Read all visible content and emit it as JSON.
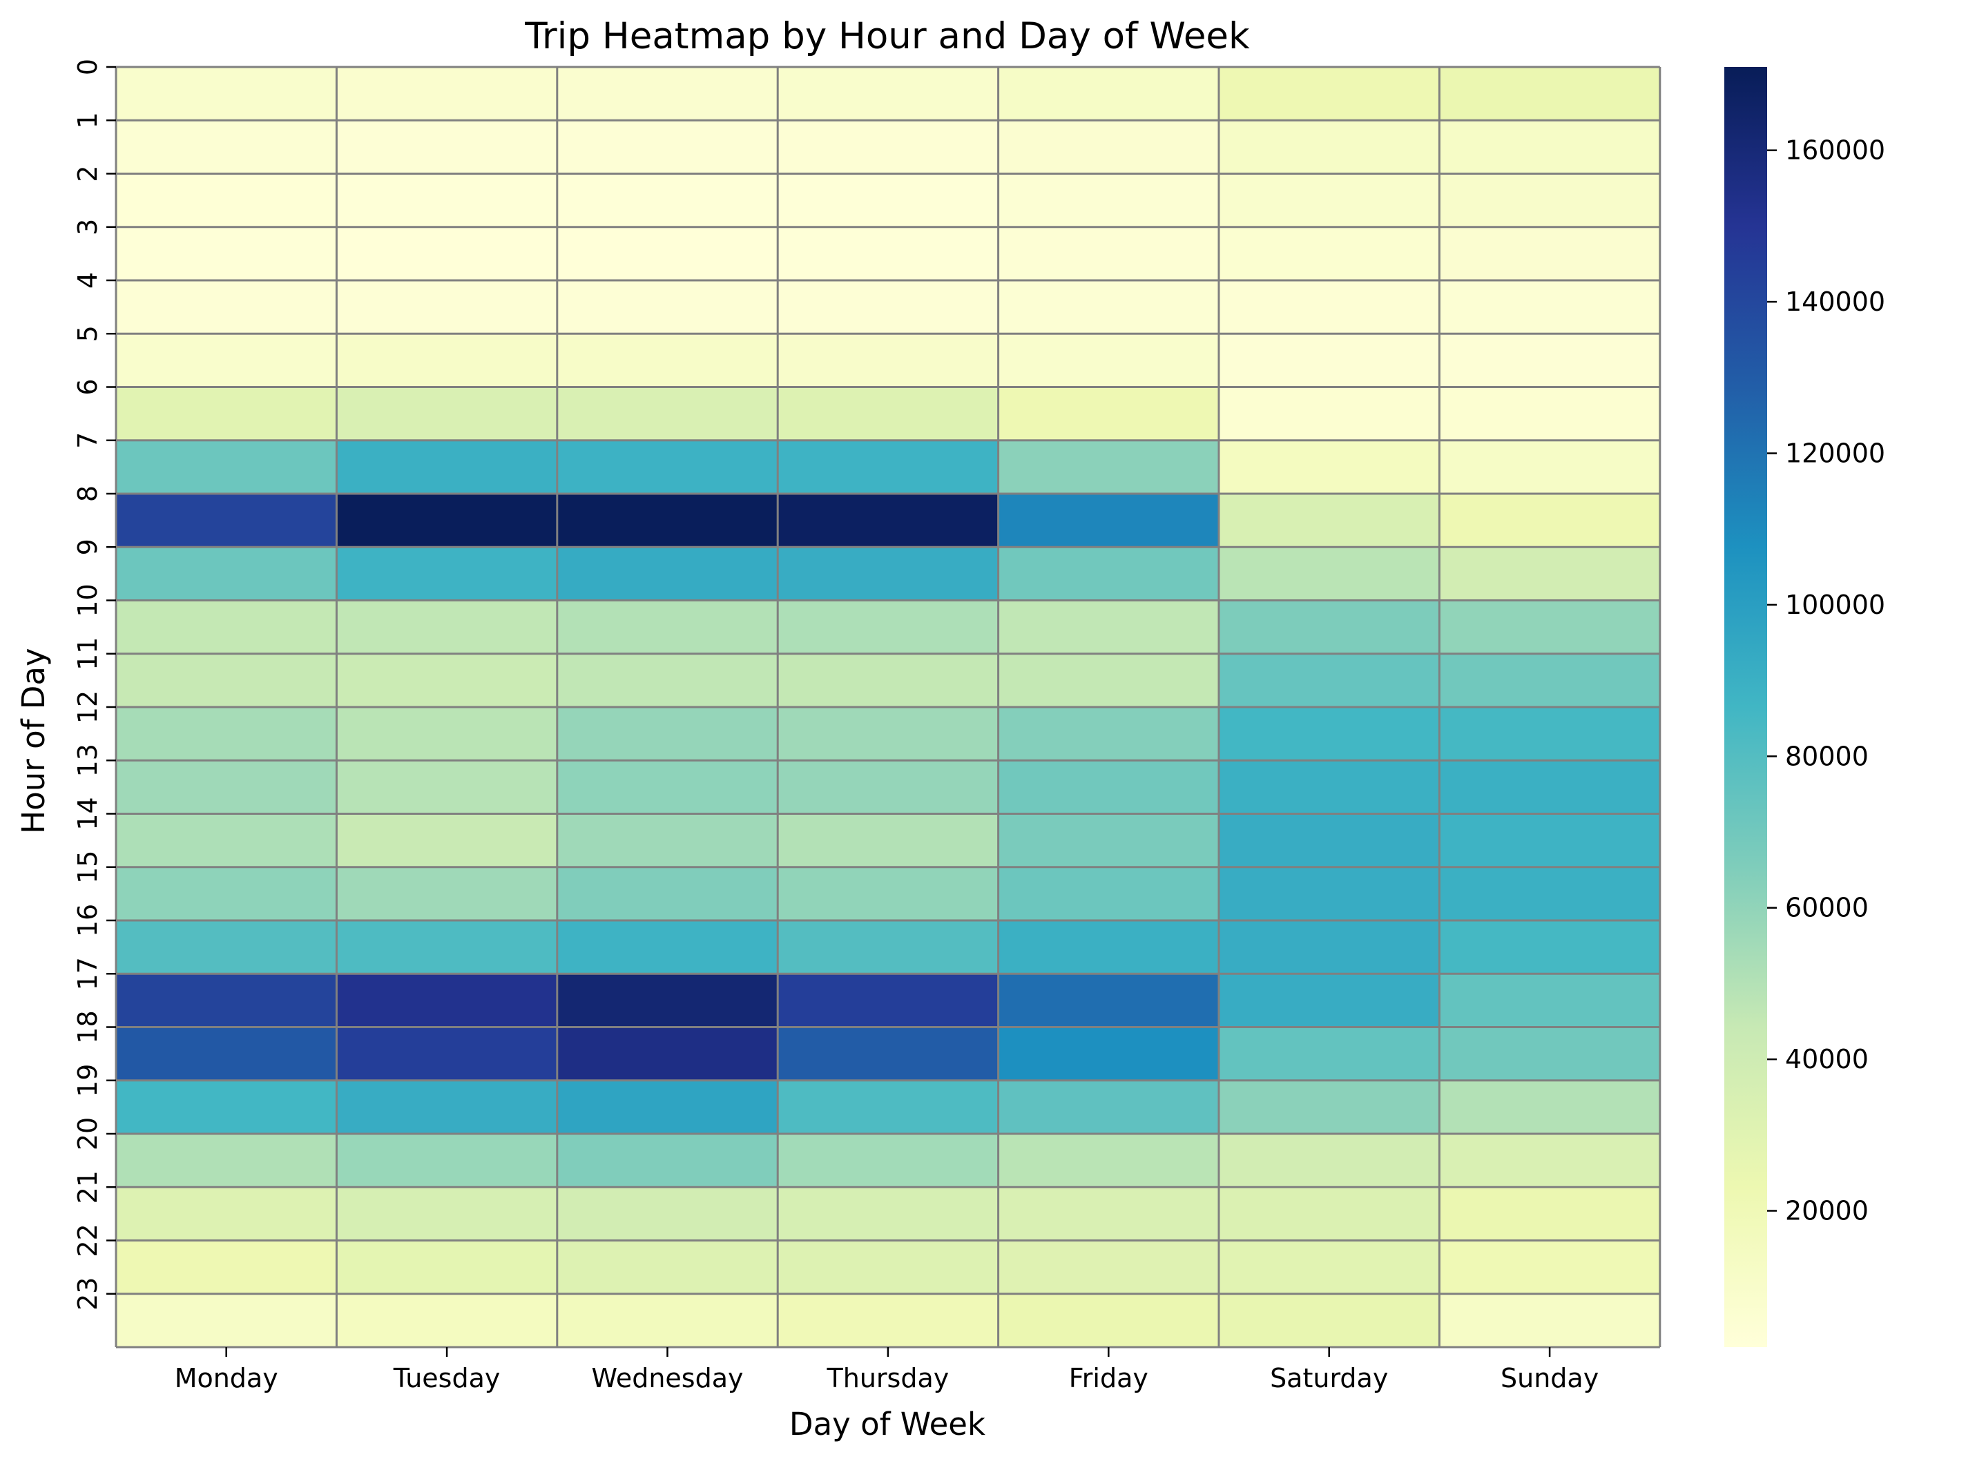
{
  "chart_data": {
    "type": "heatmap",
    "title": "Trip Heatmap by Hour and Day of Week",
    "xlabel": "Day of Week",
    "ylabel": "Hour of Day",
    "x": [
      "Monday",
      "Tuesday",
      "Wednesday",
      "Thursday",
      "Friday",
      "Saturday",
      "Sunday"
    ],
    "y": [
      "0",
      "1",
      "2",
      "3",
      "4",
      "5",
      "6",
      "7",
      "8",
      "9",
      "10",
      "11",
      "12",
      "13",
      "14",
      "15",
      "16",
      "17",
      "18",
      "19",
      "20",
      "21",
      "22",
      "23"
    ],
    "values": [
      [
        9000,
        8000,
        7500,
        9000,
        12000,
        22000,
        24000
      ],
      [
        5000,
        4000,
        4000,
        4500,
        7000,
        12000,
        12000
      ],
      [
        3500,
        3000,
        3000,
        3000,
        5000,
        9000,
        10000
      ],
      [
        3000,
        2500,
        2500,
        2800,
        4500,
        6500,
        7000
      ],
      [
        4000,
        4000,
        4000,
        4000,
        5000,
        4500,
        5000
      ],
      [
        9000,
        11000,
        11000,
        10000,
        9000,
        4000,
        4000
      ],
      [
        30000,
        34000,
        34000,
        32000,
        22000,
        6000,
        6000
      ],
      [
        72000,
        90000,
        89000,
        88000,
        62000,
        15000,
        12000
      ],
      [
        142000,
        170000,
        170000,
        168000,
        112000,
        35000,
        22000
      ],
      [
        72000,
        88000,
        93000,
        92000,
        70000,
        48000,
        38000
      ],
      [
        45000,
        46000,
        50000,
        52000,
        46000,
        66000,
        60000
      ],
      [
        44000,
        42000,
        46000,
        45000,
        45000,
        74000,
        70000
      ],
      [
        54000,
        48000,
        59000,
        56000,
        64000,
        86000,
        85000
      ],
      [
        56000,
        49000,
        61000,
        59000,
        70000,
        90000,
        90000
      ],
      [
        52000,
        43000,
        56000,
        50000,
        67000,
        92000,
        88000
      ],
      [
        61000,
        56000,
        65000,
        60000,
        72000,
        92000,
        90000
      ],
      [
        80000,
        82000,
        88000,
        80000,
        90000,
        92000,
        85000
      ],
      [
        142000,
        152000,
        162000,
        145000,
        122000,
        92000,
        75000
      ],
      [
        132000,
        145000,
        155000,
        130000,
        108000,
        75000,
        70000
      ],
      [
        86000,
        92000,
        97000,
        82000,
        76000,
        62000,
        50000
      ],
      [
        51000,
        58000,
        65000,
        55000,
        48000,
        38000,
        34000
      ],
      [
        32000,
        36000,
        38000,
        36000,
        34000,
        33000,
        24000
      ],
      [
        22000,
        28000,
        32000,
        32000,
        31000,
        30000,
        21000
      ],
      [
        12000,
        15000,
        17000,
        20000,
        24000,
        26000,
        12000
      ]
    ],
    "colorbar": {
      "min": 2000,
      "max": 171000,
      "ticks": [
        "20000",
        "40000",
        "60000",
        "80000",
        "100000",
        "120000",
        "140000",
        "160000"
      ],
      "tick_values": [
        20000,
        40000,
        60000,
        80000,
        100000,
        120000,
        140000,
        160000
      ],
      "colormap": [
        "#ffffd9",
        "#edf8b1",
        "#c7e9b4",
        "#7fcdbb",
        "#41b6c4",
        "#1d91c0",
        "#225ea8",
        "#253494",
        "#081d58"
      ]
    },
    "grid_line_color": "#808080"
  }
}
